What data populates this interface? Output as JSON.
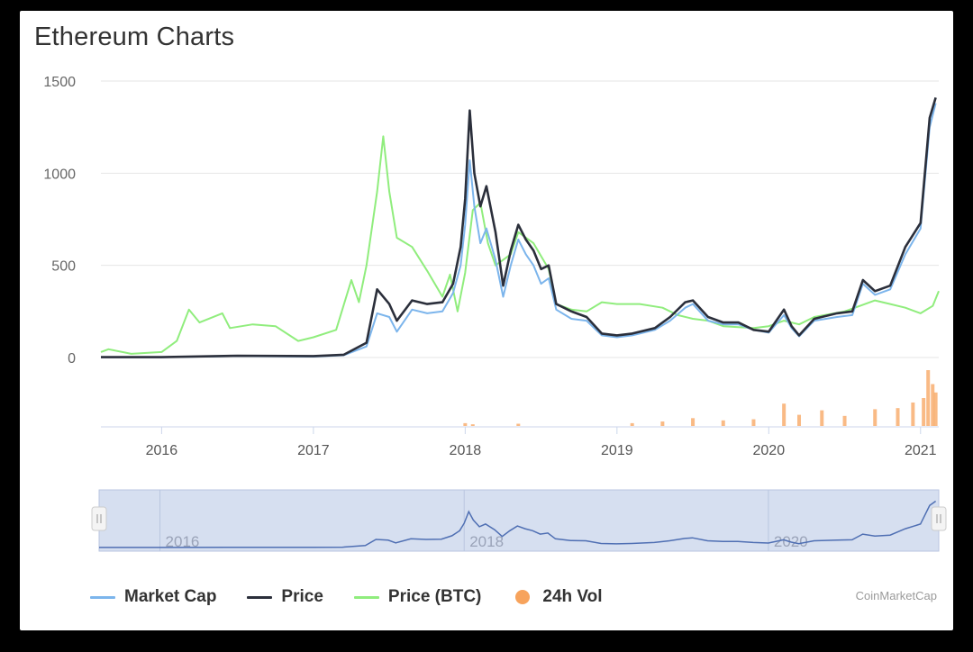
{
  "title": "Ethereum Charts",
  "credits": "CoinMarketCap",
  "legend": [
    {
      "label": "Market Cap",
      "color": "#7cb5ec",
      "symbol": "line"
    },
    {
      "label": "Price",
      "color": "#2b2f3b",
      "symbol": "line"
    },
    {
      "label": "Price (BTC)",
      "color": "#90ed7d",
      "symbol": "line"
    },
    {
      "label": "24h Vol",
      "color": "#f7a35c",
      "symbol": "dot"
    }
  ],
  "chart_data": {
    "type": "line",
    "title": "Ethereum Charts",
    "ylim": [
      0,
      1500
    ],
    "y_ticks": [
      0,
      500,
      1000,
      1500
    ],
    "x_range": [
      2015.6,
      2021.12
    ],
    "x_ticks": [
      "2016",
      "2017",
      "2018",
      "2019",
      "2020",
      "2021"
    ],
    "grid": true,
    "legend_position": "bottom",
    "navigator_labels": [
      "2016",
      "2018",
      "2020"
    ],
    "series": [
      {
        "name": "Market Cap",
        "color": "#7cb5ec",
        "points": [
          [
            2015.6,
            2
          ],
          [
            2016.0,
            2
          ],
          [
            2016.5,
            8
          ],
          [
            2017.0,
            5
          ],
          [
            2017.2,
            12
          ],
          [
            2017.35,
            60
          ],
          [
            2017.42,
            240
          ],
          [
            2017.5,
            220
          ],
          [
            2017.55,
            140
          ],
          [
            2017.65,
            260
          ],
          [
            2017.75,
            240
          ],
          [
            2017.85,
            250
          ],
          [
            2017.92,
            350
          ],
          [
            2017.97,
            500
          ],
          [
            2018.0,
            720
          ],
          [
            2018.03,
            1070
          ],
          [
            2018.06,
            820
          ],
          [
            2018.1,
            620
          ],
          [
            2018.14,
            700
          ],
          [
            2018.2,
            530
          ],
          [
            2018.25,
            330
          ],
          [
            2018.3,
            500
          ],
          [
            2018.35,
            640
          ],
          [
            2018.4,
            560
          ],
          [
            2018.45,
            500
          ],
          [
            2018.5,
            400
          ],
          [
            2018.55,
            430
          ],
          [
            2018.6,
            260
          ],
          [
            2018.7,
            210
          ],
          [
            2018.8,
            200
          ],
          [
            2018.9,
            120
          ],
          [
            2019.0,
            110
          ],
          [
            2019.1,
            120
          ],
          [
            2019.25,
            150
          ],
          [
            2019.35,
            200
          ],
          [
            2019.45,
            270
          ],
          [
            2019.5,
            290
          ],
          [
            2019.6,
            200
          ],
          [
            2019.7,
            180
          ],
          [
            2019.8,
            180
          ],
          [
            2019.9,
            150
          ],
          [
            2020.0,
            135
          ],
          [
            2020.1,
            230
          ],
          [
            2020.15,
            160
          ],
          [
            2020.2,
            115
          ],
          [
            2020.3,
            200
          ],
          [
            2020.45,
            220
          ],
          [
            2020.55,
            230
          ],
          [
            2020.62,
            400
          ],
          [
            2020.7,
            340
          ],
          [
            2020.8,
            370
          ],
          [
            2020.9,
            560
          ],
          [
            2021.0,
            700
          ],
          [
            2021.06,
            1250
          ],
          [
            2021.1,
            1380
          ]
        ]
      },
      {
        "name": "Price",
        "color": "#2b2f3b",
        "points": [
          [
            2015.6,
            2
          ],
          [
            2016.0,
            2
          ],
          [
            2016.5,
            10
          ],
          [
            2017.0,
            8
          ],
          [
            2017.2,
            15
          ],
          [
            2017.35,
            80
          ],
          [
            2017.42,
            370
          ],
          [
            2017.5,
            290
          ],
          [
            2017.55,
            200
          ],
          [
            2017.65,
            310
          ],
          [
            2017.75,
            290
          ],
          [
            2017.85,
            300
          ],
          [
            2017.92,
            400
          ],
          [
            2017.97,
            600
          ],
          [
            2018.0,
            860
          ],
          [
            2018.03,
            1340
          ],
          [
            2018.06,
            1000
          ],
          [
            2018.1,
            820
          ],
          [
            2018.14,
            930
          ],
          [
            2018.2,
            680
          ],
          [
            2018.25,
            390
          ],
          [
            2018.3,
            580
          ],
          [
            2018.35,
            720
          ],
          [
            2018.4,
            640
          ],
          [
            2018.45,
            580
          ],
          [
            2018.5,
            480
          ],
          [
            2018.55,
            500
          ],
          [
            2018.6,
            290
          ],
          [
            2018.7,
            250
          ],
          [
            2018.8,
            220
          ],
          [
            2018.9,
            130
          ],
          [
            2019.0,
            120
          ],
          [
            2019.1,
            130
          ],
          [
            2019.25,
            160
          ],
          [
            2019.35,
            220
          ],
          [
            2019.45,
            300
          ],
          [
            2019.5,
            310
          ],
          [
            2019.6,
            220
          ],
          [
            2019.7,
            190
          ],
          [
            2019.8,
            190
          ],
          [
            2019.9,
            150
          ],
          [
            2020.0,
            140
          ],
          [
            2020.1,
            260
          ],
          [
            2020.15,
            170
          ],
          [
            2020.2,
            120
          ],
          [
            2020.3,
            210
          ],
          [
            2020.45,
            240
          ],
          [
            2020.55,
            250
          ],
          [
            2020.62,
            420
          ],
          [
            2020.7,
            360
          ],
          [
            2020.8,
            390
          ],
          [
            2020.9,
            600
          ],
          [
            2021.0,
            730
          ],
          [
            2021.06,
            1300
          ],
          [
            2021.1,
            1410
          ]
        ]
      },
      {
        "name": "Price (BTC)",
        "color": "#90ed7d",
        "points": [
          [
            2015.6,
            30
          ],
          [
            2015.65,
            45
          ],
          [
            2015.8,
            20
          ],
          [
            2016.0,
            30
          ],
          [
            2016.1,
            90
          ],
          [
            2016.18,
            260
          ],
          [
            2016.25,
            190
          ],
          [
            2016.4,
            240
          ],
          [
            2016.45,
            160
          ],
          [
            2016.6,
            180
          ],
          [
            2016.75,
            170
          ],
          [
            2016.9,
            90
          ],
          [
            2017.0,
            110
          ],
          [
            2017.15,
            150
          ],
          [
            2017.25,
            420
          ],
          [
            2017.3,
            300
          ],
          [
            2017.35,
            500
          ],
          [
            2017.42,
            900
          ],
          [
            2017.46,
            1200
          ],
          [
            2017.5,
            900
          ],
          [
            2017.55,
            650
          ],
          [
            2017.65,
            600
          ],
          [
            2017.75,
            470
          ],
          [
            2017.85,
            330
          ],
          [
            2017.9,
            450
          ],
          [
            2017.95,
            250
          ],
          [
            2018.0,
            460
          ],
          [
            2018.05,
            800
          ],
          [
            2018.1,
            840
          ],
          [
            2018.15,
            620
          ],
          [
            2018.2,
            500
          ],
          [
            2018.3,
            560
          ],
          [
            2018.35,
            680
          ],
          [
            2018.45,
            620
          ],
          [
            2018.55,
            480
          ],
          [
            2018.6,
            290
          ],
          [
            2018.7,
            260
          ],
          [
            2018.8,
            250
          ],
          [
            2018.9,
            300
          ],
          [
            2019.0,
            290
          ],
          [
            2019.15,
            290
          ],
          [
            2019.3,
            270
          ],
          [
            2019.4,
            230
          ],
          [
            2019.5,
            210
          ],
          [
            2019.6,
            200
          ],
          [
            2019.7,
            170
          ],
          [
            2019.9,
            160
          ],
          [
            2020.0,
            170
          ],
          [
            2020.1,
            200
          ],
          [
            2020.2,
            180
          ],
          [
            2020.3,
            220
          ],
          [
            2020.5,
            250
          ],
          [
            2020.6,
            280
          ],
          [
            2020.7,
            310
          ],
          [
            2020.8,
            290
          ],
          [
            2020.9,
            270
          ],
          [
            2021.0,
            240
          ],
          [
            2021.08,
            280
          ],
          [
            2021.12,
            360
          ]
        ]
      },
      {
        "name": "24h Vol",
        "color": "#f7a35c",
        "type": "column",
        "points": [
          [
            2018.0,
            0.05
          ],
          [
            2018.05,
            0.03
          ],
          [
            2018.35,
            0.04
          ],
          [
            2019.1,
            0.05
          ],
          [
            2019.3,
            0.08
          ],
          [
            2019.5,
            0.14
          ],
          [
            2019.7,
            0.1
          ],
          [
            2019.9,
            0.12
          ],
          [
            2020.1,
            0.4
          ],
          [
            2020.2,
            0.2
          ],
          [
            2020.35,
            0.28
          ],
          [
            2020.5,
            0.18
          ],
          [
            2020.7,
            0.3
          ],
          [
            2020.85,
            0.32
          ],
          [
            2020.95,
            0.42
          ],
          [
            2021.02,
            0.5
          ],
          [
            2021.05,
            1.0
          ],
          [
            2021.08,
            0.75
          ],
          [
            2021.1,
            0.6
          ]
        ]
      }
    ]
  }
}
